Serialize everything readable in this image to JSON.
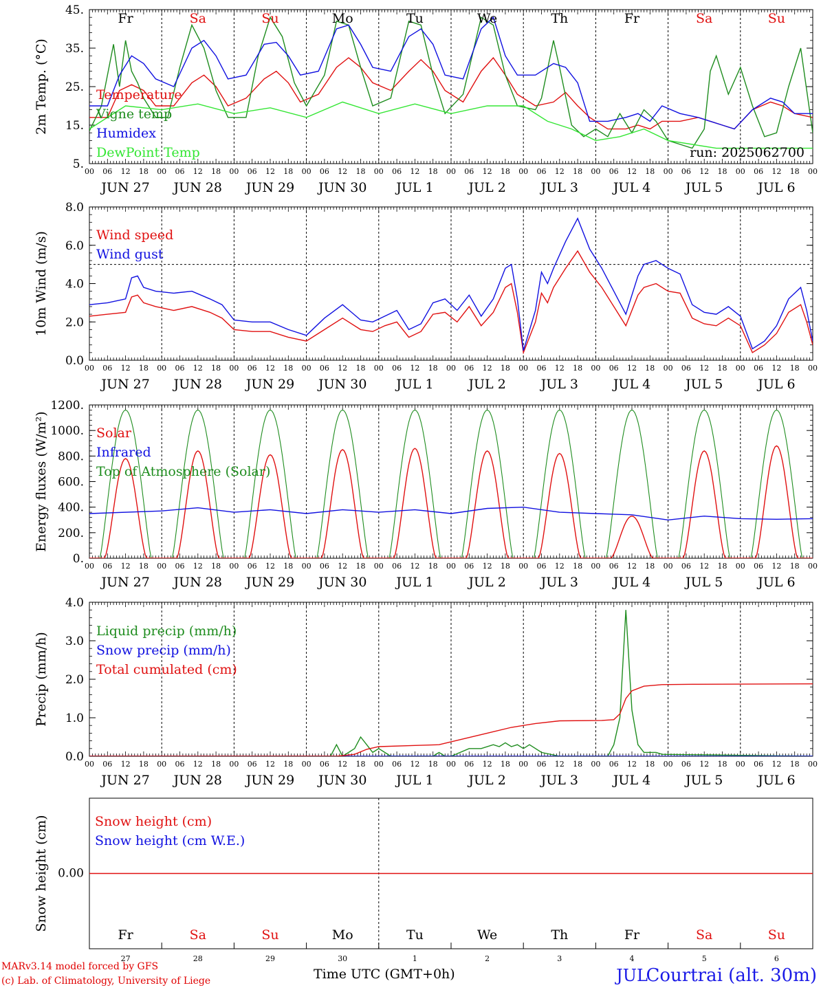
{
  "run_label": "run: 2025062700",
  "time_axis_label": "Time UTC (GMT+0h)",
  "station": "Courtrai (alt. 30m)",
  "credit": [
    "MARv3.14 model forced by GFS",
    "(c) Lab. of Climatology, University of Liege"
  ],
  "colors": {
    "red": "#e01010",
    "blue": "#1010e0",
    "green": "#1e8c1e",
    "light_green": "#33e633",
    "weekend": "#e01010",
    "weekday": "#000000"
  },
  "days": [
    {
      "date": "JUN 27",
      "dow": "Fr",
      "num": "27",
      "weekend": false
    },
    {
      "date": "JUN 28",
      "dow": "Sa",
      "num": "28",
      "weekend": true
    },
    {
      "date": "JUN 29",
      "dow": "Su",
      "num": "29",
      "weekend": true
    },
    {
      "date": "JUN 30",
      "dow": "Mo",
      "num": "30",
      "weekend": false
    },
    {
      "date": "JUL  1",
      "dow": "Tu",
      "num": "1",
      "weekend": false
    },
    {
      "date": "JUL  2",
      "dow": "We",
      "num": "2",
      "weekend": false
    },
    {
      "date": "JUL  3",
      "dow": "Th",
      "num": "3",
      "weekend": false
    },
    {
      "date": "JUL  4",
      "dow": "Fr",
      "num": "4",
      "weekend": false
    },
    {
      "date": "JUL  5",
      "dow": "Sa",
      "num": "5",
      "weekend": true
    },
    {
      "date": "JUL  6",
      "dow": "Su",
      "num": "6",
      "weekend": true
    }
  ],
  "hour_ticks": [
    "00",
    "06",
    "12",
    "18"
  ],
  "snow_month_overlay": "JUL",
  "chart_data": [
    {
      "type": "line",
      "ylabel": "2m Temp. (°C)",
      "ylim": [
        5,
        45
      ],
      "yticks": [
        "45.",
        "35.",
        "25.",
        "15.",
        "5."
      ],
      "ytick_values": [
        45,
        35,
        25,
        15,
        5
      ],
      "x_unit": "hours since JUN 27 00 UTC",
      "series": [
        {
          "name": "Temperature",
          "color": "#e01010",
          "x": [
            0,
            6,
            10,
            14,
            18,
            22,
            28,
            34,
            38,
            42,
            46,
            52,
            58,
            62,
            66,
            70,
            76,
            82,
            86,
            90,
            94,
            100,
            106,
            110,
            114,
            118,
            124,
            130,
            134,
            138,
            142,
            148,
            154,
            158,
            162,
            166,
            172,
            178,
            182,
            186,
            190,
            196,
            202,
            206,
            210,
            214,
            220,
            226,
            230,
            234,
            240
          ],
          "y": [
            17,
            17,
            24,
            25.5,
            24,
            20,
            20,
            26,
            28,
            25,
            20,
            22,
            27,
            29,
            26,
            21,
            23,
            30,
            32.5,
            30,
            26,
            24,
            29,
            32,
            29,
            24,
            21,
            29,
            32.5,
            28,
            23,
            20,
            21,
            23.5,
            20,
            17,
            14,
            14,
            15,
            14,
            16,
            16,
            17,
            16,
            15,
            14,
            19,
            21,
            20,
            18,
            17
          ]
        },
        {
          "name": "Vigne temp",
          "color": "#1e8c1e",
          "x": [
            0,
            4,
            8,
            10,
            12,
            14,
            16,
            18,
            22,
            26,
            30,
            34,
            38,
            42,
            46,
            52,
            56,
            60,
            64,
            68,
            72,
            78,
            82,
            86,
            90,
            94,
            100,
            106,
            110,
            114,
            118,
            124,
            130,
            134,
            138,
            142,
            148,
            150,
            154,
            156,
            160,
            164,
            168,
            172,
            176,
            180,
            184,
            188,
            192,
            196,
            200,
            204,
            206,
            208,
            212,
            216,
            220,
            224,
            228,
            232,
            236,
            240
          ],
          "y": [
            13.5,
            20,
            36,
            25,
            37,
            29,
            26,
            22,
            17,
            17,
            30,
            41,
            35,
            24,
            17,
            17,
            33,
            43,
            38,
            26,
            20,
            28,
            42,
            41,
            30,
            20,
            22,
            42,
            41,
            28,
            18,
            23,
            43,
            41,
            28,
            20,
            19,
            22,
            37,
            30,
            15,
            12,
            14,
            12,
            18,
            13,
            19,
            16,
            11,
            10,
            9,
            14,
            29,
            33,
            23,
            30,
            20,
            12,
            13,
            25,
            35,
            13
          ]
        },
        {
          "name": "Humidex",
          "color": "#1010e0",
          "x": [
            0,
            6,
            10,
            14,
            18,
            22,
            28,
            34,
            38,
            42,
            46,
            52,
            58,
            62,
            66,
            70,
            76,
            82,
            86,
            90,
            94,
            100,
            106,
            110,
            114,
            118,
            124,
            130,
            134,
            138,
            142,
            148,
            154,
            158,
            162,
            166,
            172,
            178,
            182,
            186,
            190,
            196,
            202,
            206,
            210,
            214,
            220,
            226,
            230,
            234,
            240
          ],
          "y": [
            20,
            20,
            28,
            33,
            31,
            27,
            25,
            35,
            37,
            33,
            27,
            28,
            36,
            36.5,
            33,
            28,
            29,
            40,
            41,
            36,
            30,
            29,
            38,
            40,
            36,
            28,
            27,
            40,
            43,
            33,
            28,
            28,
            31,
            30,
            26,
            16,
            16,
            17,
            18,
            16,
            20,
            18,
            17,
            16,
            15,
            14,
            19,
            22,
            21,
            18,
            18
          ]
        },
        {
          "name": "DewPoint Temp",
          "color": "#33e633",
          "x": [
            0,
            12,
            24,
            36,
            48,
            60,
            72,
            84,
            96,
            108,
            120,
            132,
            144,
            152,
            160,
            168,
            176,
            184,
            192,
            200,
            208,
            216,
            224,
            232,
            240
          ],
          "y": [
            14,
            20,
            19,
            20.5,
            18,
            19.5,
            17,
            21,
            18,
            20.5,
            18,
            20,
            20,
            16,
            14,
            11,
            12,
            14,
            11,
            10,
            9,
            9,
            9,
            9,
            9
          ]
        }
      ]
    },
    {
      "type": "line",
      "ylabel": "10m Wind (m/s)",
      "ylim": [
        0,
        8
      ],
      "yticks": [
        "8.0",
        "6.0",
        "4.0",
        "2.0",
        "0.0"
      ],
      "ytick_values": [
        8,
        6,
        4,
        2,
        0
      ],
      "reference_line": 5,
      "series": [
        {
          "name": "Wind speed",
          "color": "#e01010",
          "x": [
            0,
            6,
            12,
            14,
            16,
            18,
            22,
            28,
            34,
            40,
            44,
            48,
            54,
            60,
            66,
            72,
            78,
            84,
            90,
            94,
            98,
            102,
            106,
            110,
            114,
            118,
            122,
            126,
            130,
            134,
            138,
            140,
            142,
            144,
            148,
            150,
            152,
            154,
            158,
            162,
            166,
            170,
            174,
            178,
            182,
            184,
            188,
            192,
            196,
            200,
            204,
            208,
            212,
            216,
            220,
            224,
            228,
            232,
            236,
            238,
            240
          ],
          "y": [
            2.3,
            2.4,
            2.5,
            3.3,
            3.4,
            3,
            2.8,
            2.6,
            2.8,
            2.5,
            2.2,
            1.6,
            1.5,
            1.5,
            1.2,
            1.0,
            1.6,
            2.2,
            1.6,
            1.5,
            1.8,
            2.0,
            1.2,
            1.5,
            2.4,
            2.5,
            2.0,
            2.8,
            1.8,
            2.5,
            3.8,
            4.0,
            2.5,
            0.4,
            2.0,
            3.5,
            3.0,
            3.8,
            4.8,
            5.7,
            4.6,
            3.8,
            2.8,
            1.8,
            3.4,
            3.8,
            4.0,
            3.6,
            3.5,
            2.2,
            1.9,
            1.8,
            2.2,
            1.8,
            0.4,
            0.8,
            1.4,
            2.5,
            2.9,
            2.0,
            0.8
          ]
        },
        {
          "name": "Wind gust",
          "color": "#1010e0",
          "x": [
            0,
            6,
            12,
            14,
            16,
            18,
            22,
            28,
            34,
            40,
            44,
            48,
            54,
            60,
            66,
            72,
            78,
            84,
            90,
            94,
            98,
            102,
            106,
            110,
            114,
            118,
            122,
            126,
            130,
            134,
            138,
            140,
            142,
            144,
            148,
            150,
            152,
            154,
            158,
            162,
            166,
            170,
            174,
            178,
            182,
            184,
            188,
            192,
            196,
            200,
            204,
            208,
            212,
            216,
            220,
            224,
            228,
            232,
            236,
            238,
            240
          ],
          "y": [
            2.9,
            3.0,
            3.2,
            4.3,
            4.4,
            3.8,
            3.6,
            3.5,
            3.6,
            3.2,
            2.9,
            2.1,
            2.0,
            2.0,
            1.6,
            1.3,
            2.2,
            2.9,
            2.1,
            2.0,
            2.3,
            2.6,
            1.6,
            1.9,
            3.0,
            3.2,
            2.6,
            3.4,
            2.3,
            3.2,
            4.8,
            5.0,
            3.2,
            0.5,
            2.6,
            4.6,
            4.0,
            4.8,
            6.2,
            7.4,
            5.8,
            4.8,
            3.6,
            2.4,
            4.4,
            5.0,
            5.2,
            4.8,
            4.5,
            2.9,
            2.5,
            2.4,
            2.8,
            2.3,
            0.6,
            1.0,
            1.8,
            3.2,
            3.8,
            2.6,
            1.0
          ]
        }
      ]
    },
    {
      "type": "line",
      "ylabel": "Energy fluxes (W/m²)",
      "ylim": [
        0,
        1200
      ],
      "yticks": [
        "1200.",
        "1000.",
        "800.",
        "600.",
        "400.",
        "200.",
        "0."
      ],
      "ytick_values": [
        1200,
        1000,
        800,
        600,
        400,
        200,
        0
      ],
      "solar_peaks": [
        780,
        840,
        810,
        850,
        860,
        840,
        820,
        330,
        840,
        880
      ],
      "toa_peak": 1160,
      "series": [
        {
          "name": "Solar",
          "color": "#e01010"
        },
        {
          "name": "Infrared",
          "color": "#1010e0",
          "x": [
            0,
            24,
            36,
            48,
            60,
            72,
            84,
            96,
            108,
            120,
            132,
            144,
            156,
            168,
            180,
            192,
            204,
            216,
            228,
            240
          ],
          "y": [
            350,
            370,
            395,
            360,
            380,
            350,
            380,
            360,
            380,
            350,
            390,
            400,
            360,
            350,
            340,
            300,
            330,
            310,
            305,
            310
          ]
        },
        {
          "name": "Top of Atmosphere (Solar)",
          "color": "#1e8c1e"
        }
      ]
    },
    {
      "type": "line",
      "ylabel": "Precip (mm/h)",
      "ylim": [
        0,
        4
      ],
      "yticks": [
        "4.0",
        "3.0",
        "2.0",
        "1.0",
        "0.0"
      ],
      "ytick_values": [
        4,
        3,
        2,
        1,
        0
      ],
      "series": [
        {
          "name": "Liquid precip (mm/h)",
          "color": "#1e8c1e",
          "x": [
            0,
            80,
            82,
            84,
            86,
            88,
            90,
            92,
            94,
            96,
            98,
            100,
            114,
            116,
            118,
            120,
            126,
            130,
            134,
            136,
            138,
            140,
            142,
            144,
            146,
            150,
            156,
            172,
            174,
            176,
            178,
            180,
            182,
            184,
            188,
            190,
            240
          ],
          "y": [
            0,
            0,
            0.3,
            0,
            0.1,
            0.2,
            0.5,
            0.3,
            0.1,
            0.2,
            0.1,
            0,
            0,
            0.1,
            0,
            0,
            0.2,
            0.2,
            0.3,
            0.25,
            0.35,
            0.25,
            0.3,
            0.2,
            0.3,
            0.1,
            0,
            0,
            0.3,
            1.0,
            3.8,
            1.2,
            0.3,
            0.1,
            0.1,
            0.05,
            0
          ]
        },
        {
          "name": "Snow precip (mm/h)",
          "color": "#1010e0",
          "x": [
            0,
            240
          ],
          "y": [
            0,
            0
          ]
        },
        {
          "name": "Total cumulated (cm)",
          "color": "#e01010",
          "x": [
            0,
            82,
            88,
            92,
            96,
            108,
            116,
            124,
            132,
            140,
            148,
            156,
            170,
            174,
            176,
            178,
            180,
            184,
            190,
            200,
            240
          ],
          "y": [
            0,
            0,
            0.05,
            0.18,
            0.25,
            0.28,
            0.3,
            0.45,
            0.6,
            0.75,
            0.85,
            0.92,
            0.93,
            0.95,
            1.1,
            1.5,
            1.7,
            1.82,
            1.86,
            1.87,
            1.88
          ]
        }
      ]
    },
    {
      "type": "line",
      "ylabel": "Snow height (cm)",
      "yticks": [
        "0.00"
      ],
      "series": [
        {
          "name": "Snow height (cm)",
          "color": "#e01010",
          "x": [
            0,
            240
          ],
          "y": [
            0,
            0
          ]
        },
        {
          "name": "Snow height (cm W.E.)",
          "color": "#1010e0"
        }
      ]
    }
  ]
}
